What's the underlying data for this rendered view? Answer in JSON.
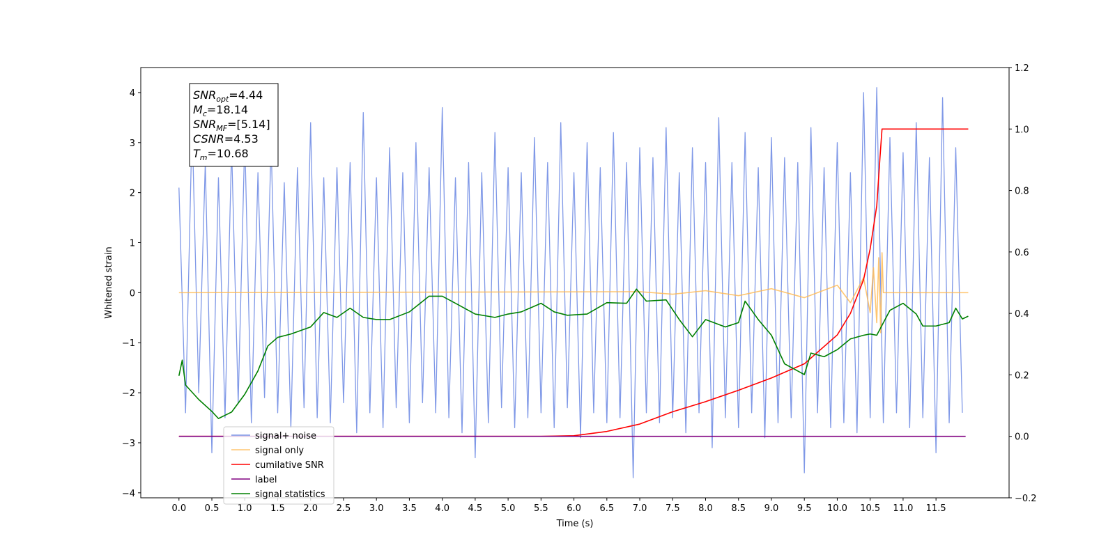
{
  "chart_data": {
    "type": "line",
    "xlabel": "Time (s)",
    "ylabel": "Whitened strain",
    "xlim": [
      -0.58,
      12.61
    ],
    "ylim": [
      -4.1,
      4.5
    ],
    "y2lim": [
      -0.2,
      1.2
    ],
    "xticks": [
      {
        "value": 0,
        "label": "0.0"
      },
      0.5,
      {
        "value": 1,
        "label": "1.0"
      },
      1.5,
      {
        "value": 2,
        "label": "2.0"
      },
      2.5,
      {
        "value": 3,
        "label": "3.0"
      },
      3.5,
      {
        "value": 4,
        "label": "4.0"
      },
      4.5,
      {
        "value": 5,
        "label": "5.0"
      },
      5.5,
      {
        "value": 6,
        "label": "6.0"
      },
      6.5,
      {
        "value": 7,
        "label": "7.0"
      },
      7.5,
      {
        "value": 8,
        "label": "8.0"
      },
      8.5,
      {
        "value": 9,
        "label": "9.0"
      },
      9.5,
      {
        "value": 10,
        "label": "10.0"
      },
      10.5,
      {
        "value": 11,
        "label": "11.0"
      },
      11.5
    ],
    "yticks": [
      {
        "value": -4,
        "label": "−4"
      },
      {
        "value": -3,
        "label": "−3"
      },
      {
        "value": -2,
        "label": "−2"
      },
      {
        "value": -1,
        "label": "−1"
      },
      0,
      1,
      2,
      3,
      4
    ],
    "y2ticks": [
      {
        "value": -0.2,
        "label": "−0.2"
      },
      {
        "value": 0,
        "label": "0.0"
      },
      0.2,
      0.4,
      0.6,
      0.8,
      {
        "value": 1,
        "label": "1.0"
      },
      1.2
    ],
    "legend": "lower left",
    "annotations": [
      {
        "symbol": "SNR",
        "subscript": "opt",
        "text": "=4.44"
      },
      {
        "symbol": "M",
        "subscript": "c",
        "text": "=18.14"
      },
      {
        "symbol": "SNR",
        "subscript": "MF",
        "text": "=[5.14]"
      },
      {
        "symbol": "CSNR",
        "text": "=4.53"
      },
      {
        "symbol": "T",
        "subscript": "m",
        "text": "=10.68"
      }
    ],
    "series": [
      {
        "name": "signal+ noise",
        "color": "#7892e6",
        "x": [
          0,
          0.1,
          0.2,
          0.3,
          0.4,
          0.5,
          0.6,
          0.7,
          0.8,
          0.9,
          1,
          1.1,
          1.2,
          1.3,
          1.4,
          1.5,
          1.6,
          1.7,
          1.8,
          1.9,
          2,
          2.1,
          2.2,
          2.3,
          2.4,
          2.5,
          2.6,
          2.7,
          2.8,
          2.9,
          3,
          3.1,
          3.2,
          3.3,
          3.4,
          3.5,
          3.6,
          3.7,
          3.8,
          3.9,
          4,
          4.1,
          4.2,
          4.3,
          4.4,
          4.5,
          4.6,
          4.7,
          4.8,
          4.9,
          5,
          5.1,
          5.2,
          5.3,
          5.4,
          5.5,
          5.6,
          5.7,
          5.8,
          5.9,
          6,
          6.1,
          6.2,
          6.3,
          6.4,
          6.5,
          6.6,
          6.7,
          6.8,
          6.9,
          7,
          7.1,
          7.2,
          7.3,
          7.4,
          7.5,
          7.6,
          7.7,
          7.8,
          7.9,
          8,
          8.1,
          8.2,
          8.3,
          8.4,
          8.5,
          8.6,
          8.7,
          8.8,
          8.9,
          9,
          9.1,
          9.2,
          9.3,
          9.4,
          9.5,
          9.6,
          9.7,
          9.8,
          9.9,
          10,
          10.1,
          10.2,
          10.3,
          10.4,
          10.5,
          10.6,
          10.7,
          10.8,
          10.9,
          11,
          11.1,
          11.2,
          11.3,
          11.4,
          11.5,
          11.6,
          11.7,
          11.8,
          11.9
        ],
        "values": [
          2.1,
          -2.4,
          3.4,
          -2.0,
          2.6,
          -3.2,
          2.3,
          -2.5,
          2.9,
          -2.2,
          3.1,
          -2.6,
          2.4,
          -2.1,
          3.0,
          -2.4,
          2.2,
          -2.7,
          2.5,
          -2.3,
          3.4,
          -2.5,
          2.3,
          -2.6,
          2.5,
          -2.2,
          2.6,
          -2.8,
          3.6,
          -2.4,
          2.3,
          -2.7,
          2.9,
          -2.3,
          2.4,
          -2.6,
          3.0,
          -2.2,
          2.5,
          -2.4,
          3.7,
          -2.5,
          2.3,
          -2.8,
          2.6,
          -3.3,
          2.4,
          -2.6,
          3.2,
          -2.3,
          2.5,
          -2.7,
          2.4,
          -2.5,
          3.1,
          -2.4,
          2.6,
          -2.7,
          3.4,
          -2.3,
          2.4,
          -2.9,
          3.0,
          -2.4,
          2.5,
          -2.6,
          3.2,
          -2.5,
          2.6,
          -3.7,
          2.9,
          -2.4,
          2.7,
          -2.6,
          3.3,
          -2.5,
          2.4,
          -2.8,
          2.9,
          -2.4,
          2.6,
          -3.1,
          3.5,
          -2.5,
          2.6,
          -2.7,
          3.2,
          -2.4,
          2.5,
          -2.9,
          3.1,
          -2.6,
          2.7,
          -2.5,
          2.6,
          -3.6,
          3.3,
          -2.4,
          2.5,
          -2.7,
          3.0,
          -2.6,
          2.4,
          -2.8,
          4.0,
          -2.5,
          4.1,
          -2.6,
          3.1,
          -2.4,
          2.8,
          -2.7,
          3.4,
          -2.5,
          2.7,
          -3.2,
          3.9,
          -2.6,
          2.9,
          -2.4
        ]
      },
      {
        "name": "signal only",
        "color": "#ffb84d",
        "x": [
          0,
          7,
          7.5,
          8,
          8.5,
          9,
          9.5,
          10,
          10.2,
          10.4,
          10.5,
          10.55,
          10.6,
          10.63,
          10.66,
          10.68,
          10.7,
          11.99
        ],
        "values": [
          0,
          0.02,
          -0.03,
          0.04,
          -0.06,
          0.08,
          -0.1,
          0.15,
          -0.2,
          0.3,
          -0.4,
          0.5,
          -0.6,
          0.7,
          -0.8,
          0.8,
          0,
          0
        ]
      },
      {
        "name": "cumilative SNR",
        "color": "#ff0000",
        "axis": "y2",
        "x": [
          0,
          5.5,
          6,
          6.5,
          7,
          7.5,
          8,
          8.5,
          9,
          9.5,
          10,
          10.2,
          10.4,
          10.5,
          10.6,
          10.65,
          10.68,
          11.99
        ],
        "values": [
          0,
          0,
          0.002,
          0.016,
          0.04,
          0.08,
          0.113,
          0.15,
          0.19,
          0.236,
          0.33,
          0.4,
          0.51,
          0.61,
          0.75,
          0.91,
          1,
          1
        ]
      },
      {
        "name": "label",
        "color": "#800080",
        "axis": "y2",
        "x": [
          0,
          11.95
        ],
        "values": [
          0,
          0
        ]
      },
      {
        "name": "signal statistics",
        "color": "#008000",
        "axis": "y2",
        "x": [
          0,
          0.05,
          0.1,
          0.3,
          0.5,
          0.6,
          0.8,
          1,
          1.2,
          1.35,
          1.5,
          1.7,
          2,
          2.2,
          2.4,
          2.6,
          2.8,
          3,
          3.2,
          3.5,
          3.8,
          4,
          4.2,
          4.5,
          4.8,
          5,
          5.2,
          5.5,
          5.7,
          5.9,
          6.2,
          6.5,
          6.8,
          6.95,
          7.1,
          7.4,
          7.6,
          7.8,
          8,
          8.3,
          8.5,
          8.6,
          8.8,
          9,
          9.2,
          9.5,
          9.6,
          9.8,
          10,
          10.2,
          10.4,
          10.5,
          10.6,
          10.8,
          11,
          11.2,
          11.3,
          11.5,
          11.7,
          11.8,
          11.9,
          11.99
        ],
        "values": [
          0.197,
          0.248,
          0.167,
          0.12,
          0.081,
          0.058,
          0.079,
          0.137,
          0.213,
          0.294,
          0.322,
          0.333,
          0.356,
          0.403,
          0.387,
          0.417,
          0.387,
          0.38,
          0.38,
          0.405,
          0.456,
          0.456,
          0.433,
          0.398,
          0.387,
          0.398,
          0.405,
          0.433,
          0.405,
          0.394,
          0.398,
          0.435,
          0.433,
          0.479,
          0.44,
          0.444,
          0.38,
          0.324,
          0.38,
          0.356,
          0.37,
          0.44,
          0.38,
          0.329,
          0.236,
          0.201,
          0.271,
          0.259,
          0.282,
          0.317,
          0.329,
          0.333,
          0.329,
          0.41,
          0.433,
          0.398,
          0.359,
          0.359,
          0.37,
          0.417,
          0.382,
          0.391
        ]
      }
    ]
  }
}
